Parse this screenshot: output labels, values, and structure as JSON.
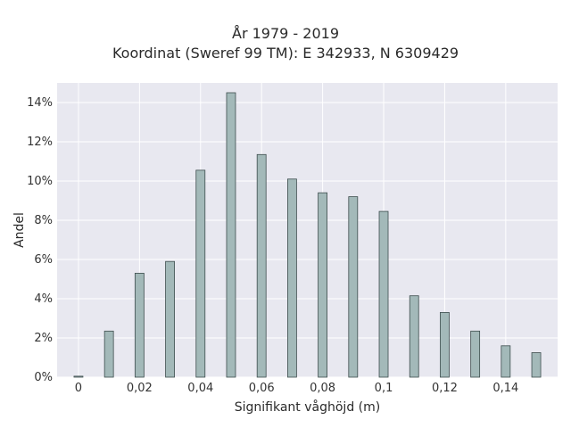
{
  "chart_data": {
    "type": "bar",
    "title_lines": [
      "År 1979 - 2019",
      "Koordinat (Sweref 99 TM): E 342933, N 6309429"
    ],
    "xlabel": "Signifikant våghöjd (m)",
    "ylabel": "Andel",
    "x": [
      0,
      0.01,
      0.02,
      0.03,
      0.04,
      0.05,
      0.06,
      0.07,
      0.08,
      0.09,
      0.1,
      0.11,
      0.12,
      0.13,
      0.14,
      0.15
    ],
    "values": [
      0.05,
      2.35,
      5.3,
      5.9,
      10.55,
      14.5,
      11.35,
      10.1,
      9.4,
      9.2,
      8.45,
      4.15,
      3.3,
      2.35,
      1.6,
      1.25
    ],
    "xlim": [
      -0.007,
      0.157
    ],
    "ylim": [
      0,
      15.0
    ],
    "xticks": [
      0,
      0.02,
      0.04,
      0.06,
      0.08,
      0.1,
      0.12,
      0.14
    ],
    "xtick_labels": [
      "0",
      "0,02",
      "0,04",
      "0,06",
      "0,08",
      "0,1",
      "0,12",
      "0,14"
    ],
    "yticks": [
      0,
      2,
      4,
      6,
      8,
      10,
      12,
      14
    ],
    "ytick_labels": [
      "0%",
      "2%",
      "4%",
      "6%",
      "8%",
      "10%",
      "12%",
      "14%"
    ],
    "grid": true,
    "colors": {
      "bar_fill": "#a3b9b9",
      "bar_stroke": "#3d4d4d",
      "plot_bg": "#e8e8f0",
      "grid": "#ffffff"
    }
  }
}
